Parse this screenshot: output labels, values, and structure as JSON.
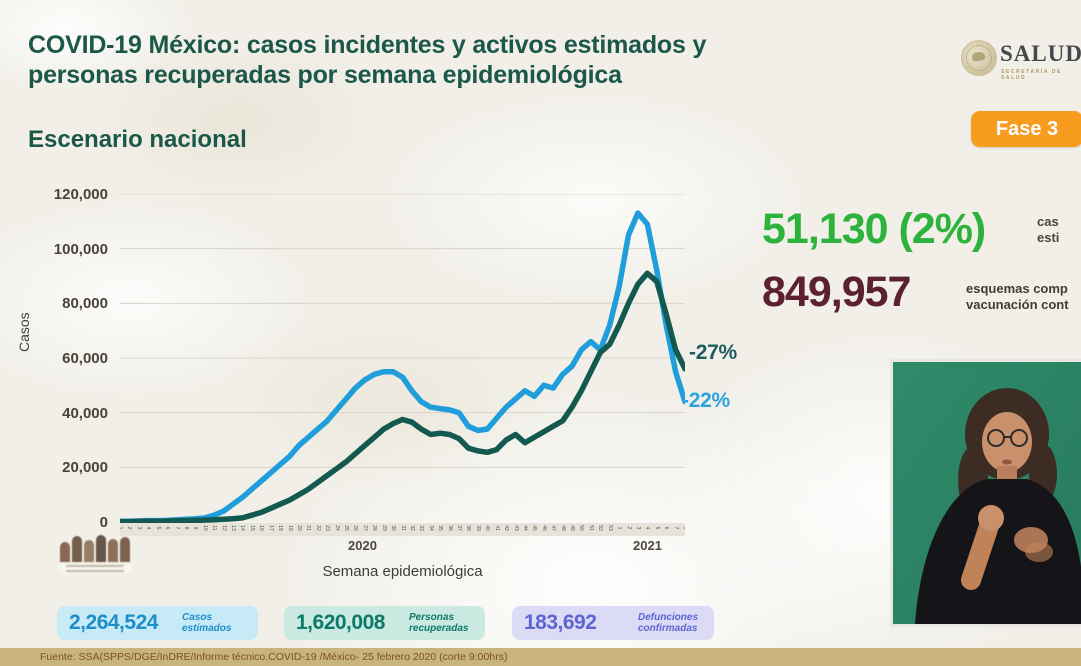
{
  "header": {
    "title_line1": "COVID-19 México: casos incidentes y activos estimados y",
    "title_line2": "personas recuperadas por semana epidemiológica",
    "subtitle": "Escenario nacional",
    "logo": {
      "name": "SALUD",
      "sub": "SECRETARÍA DE SALUD"
    },
    "phase_badge": "Fase 3",
    "phase_badge_color": "#f79c1f"
  },
  "chart_data": {
    "type": "line",
    "title": "",
    "xlabel": "Semana epidemiológica",
    "ylabel": "Casos",
    "ylim": [
      0,
      120000
    ],
    "grid": true,
    "legend": false,
    "yticks": [
      "120,000",
      "100,000",
      "80,000",
      "60,000",
      "40,000",
      "20,000",
      "0"
    ],
    "ytick_values": [
      120000,
      100000,
      80000,
      60000,
      40000,
      20000,
      0
    ],
    "year_labels": [
      "2020",
      "2021"
    ],
    "x_weeks_2020": [
      1,
      2,
      3,
      4,
      5,
      6,
      7,
      8,
      9,
      10,
      11,
      12,
      13,
      14,
      15,
      16,
      17,
      18,
      19,
      20,
      21,
      22,
      23,
      24,
      25,
      26,
      27,
      28,
      29,
      30,
      31,
      32,
      33,
      34,
      35,
      36,
      37,
      38,
      39,
      40,
      41,
      42,
      43,
      44,
      45,
      46,
      47,
      48,
      49,
      50,
      51,
      52,
      53
    ],
    "x_weeks_2021": [
      1,
      2,
      3,
      4,
      5,
      6,
      7,
      8
    ],
    "series": [
      {
        "name": "Casos incidentes estimados",
        "color": "#209ddb",
        "values": [
          300,
          300,
          400,
          500,
          500,
          600,
          800,
          1000,
          1200,
          1500,
          2500,
          4000,
          6500,
          9000,
          12000,
          15000,
          18000,
          21000,
          24000,
          28000,
          31000,
          34000,
          37000,
          41000,
          45000,
          49000,
          52000,
          54000,
          55000,
          55000,
          53000,
          48000,
          44000,
          42000,
          41500,
          41000,
          40000,
          35000,
          33500,
          34000,
          38000,
          42000,
          45000,
          48000,
          46000,
          50000,
          49000,
          54000,
          57000,
          63000,
          66000,
          63000,
          72000,
          86000,
          105000,
          113000,
          109000,
          92000,
          72000,
          55000,
          44000
        ]
      },
      {
        "name": "Personas recuperadas",
        "color": "#14594f",
        "values": [
          100,
          150,
          200,
          250,
          300,
          350,
          400,
          500,
          600,
          700,
          800,
          1000,
          1200,
          1500,
          2500,
          3500,
          5000,
          6500,
          8000,
          10000,
          12000,
          14500,
          17000,
          19500,
          22000,
          25000,
          28000,
          31000,
          34000,
          36000,
          37500,
          36500,
          34000,
          32000,
          32500,
          32000,
          30500,
          27000,
          26000,
          25500,
          26500,
          30000,
          32000,
          29000,
          31000,
          33000,
          35000,
          37000,
          42000,
          48000,
          55000,
          62000,
          65000,
          72000,
          80000,
          87000,
          91000,
          88000,
          76000,
          63000,
          56000
        ]
      }
    ],
    "annotations": [
      {
        "text": "-27%",
        "color": "#1f5c60",
        "series": "Personas recuperadas"
      },
      {
        "text": "-22%",
        "color": "#2ba4de",
        "series": "Casos incidentes estimados"
      }
    ]
  },
  "right_stats": {
    "active_cases": {
      "value": "51,130 (2%)",
      "color": "#2db33c",
      "label_line1": "cas",
      "label_line2": "esti"
    },
    "vaccination": {
      "value": "849,957",
      "color": "#5b2130",
      "label_line1": "esquemas comp",
      "label_line2": "vacunación cont"
    }
  },
  "bottom_stats": {
    "items": [
      {
        "value": "2,264,524",
        "label": "Casos estimados",
        "bg": "#c7eaf7",
        "color": "#1e8dc8"
      },
      {
        "value": "1,620,008",
        "label": "Personas recuperadas",
        "bg": "#c9e9e1",
        "color": "#0c7a68"
      },
      {
        "value": "183,692",
        "label": "Defunciones confirmadas",
        "bg": "#dbdbf5",
        "color": "#5e64d4"
      }
    ]
  },
  "footer": {
    "source": "Fuente: SSA(SPPS/DGE/InDRE/Informe técnico.COVID-19 /México- 25 febrero 2020 (corte 9:00hrs)"
  }
}
